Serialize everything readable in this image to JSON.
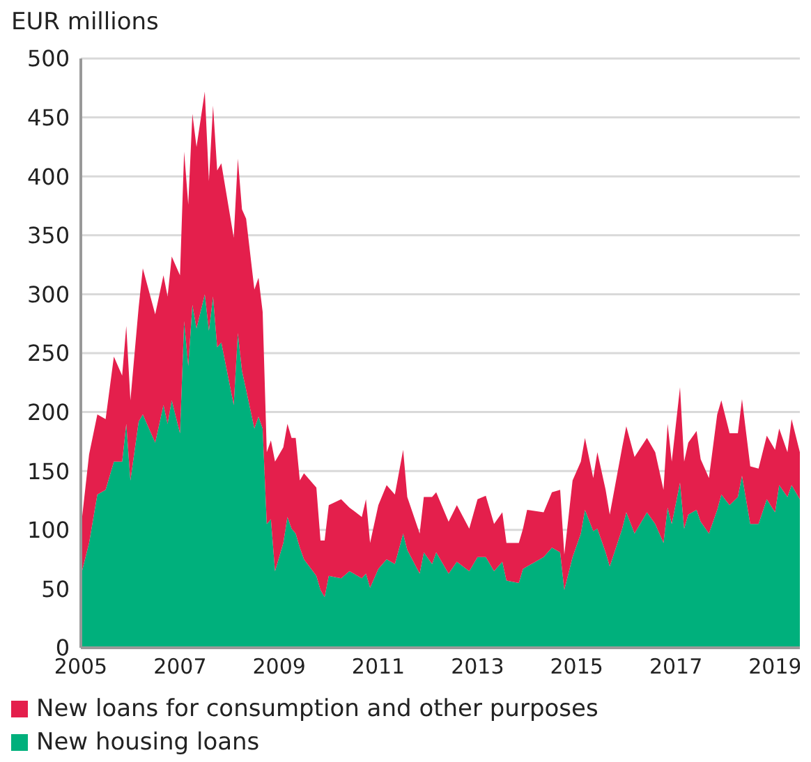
{
  "chart_data": {
    "type": "area",
    "ylabel": "EUR millions",
    "stacked": true,
    "grid": "y",
    "legend": "bottom",
    "x": [
      "2005-01",
      "2005-03",
      "2005-05",
      "2005-07",
      "2005-09",
      "2005-11",
      "2005-12",
      "2006-01",
      "2006-03",
      "2006-04",
      "2006-07",
      "2006-09",
      "2006-10",
      "2006-11",
      "2007-01",
      "2007-02",
      "2007-03",
      "2007-04",
      "2007-05",
      "2007-07",
      "2007-08",
      "2007-09",
      "2007-10",
      "2007-11",
      "2008-02",
      "2008-03",
      "2008-04",
      "2008-05",
      "2008-07",
      "2008-08",
      "2008-09",
      "2008-10",
      "2008-11",
      "2008-12",
      "2009-02",
      "2009-03",
      "2009-04",
      "2009-05",
      "2009-06",
      "2009-07",
      "2009-10",
      "2009-11",
      "2009-12",
      "2010-01",
      "2010-04",
      "2010-06",
      "2010-09",
      "2010-10",
      "2010-11",
      "2011-01",
      "2011-03",
      "2011-05",
      "2011-07",
      "2011-08",
      "2011-11",
      "2011-12",
      "2012-02",
      "2012-03",
      "2012-06",
      "2012-08",
      "2012-11",
      "2013-01",
      "2013-03",
      "2013-05",
      "2013-07",
      "2013-08",
      "2013-11",
      "2013-12",
      "2014-01",
      "2014-05",
      "2014-07",
      "2014-09",
      "2014-10",
      "2014-12",
      "2015-02",
      "2015-03",
      "2015-05",
      "2015-06",
      "2015-08",
      "2015-09",
      "2015-12",
      "2016-01",
      "2016-03",
      "2016-06",
      "2016-08",
      "2016-10",
      "2016-11",
      "2016-12",
      "2017-02",
      "2017-03",
      "2017-04",
      "2017-06",
      "2017-07",
      "2017-09",
      "2017-11",
      "2017-12",
      "2018-02",
      "2018-04",
      "2018-05",
      "2018-07",
      "2018-09",
      "2018-11",
      "2019-01",
      "2019-02",
      "2019-04",
      "2019-05",
      "2019-07"
    ],
    "series": [
      {
        "name": "New housing loans",
        "color": "#00b07c",
        "values": [
          61,
          89,
          130,
          134,
          158,
          158,
          190,
          142,
          192,
          198,
          174,
          206,
          190,
          210,
          182,
          277,
          239,
          291,
          271,
          300,
          269,
          298,
          255,
          259,
          206,
          267,
          235,
          219,
          186,
          196,
          186,
          105,
          109,
          65,
          89,
          111,
          101,
          97,
          85,
          75,
          61,
          49,
          43,
          61,
          59,
          65,
          59,
          63,
          51,
          67,
          75,
          71,
          97,
          83,
          63,
          81,
          71,
          81,
          63,
          73,
          65,
          77,
          77,
          65,
          73,
          57,
          55,
          67,
          69,
          77,
          85,
          81,
          49,
          77,
          97,
          117,
          99,
          101,
          81,
          69,
          101,
          115,
          97,
          115,
          105,
          89,
          119,
          105,
          140,
          101,
          113,
          117,
          107,
          97,
          117,
          130,
          121,
          128,
          146,
          105,
          105,
          126,
          115,
          138,
          128,
          138,
          126
        ]
      },
      {
        "name": "New loans for consumption and other purposes",
        "color": "#e41f4c",
        "values": [
          40,
          75,
          68,
          60,
          89,
          73,
          83,
          68,
          97,
          124,
          109,
          110,
          108,
          122,
          134,
          144,
          137,
          162,
          154,
          172,
          127,
          162,
          150,
          152,
          142,
          148,
          137,
          145,
          118,
          118,
          99,
          61,
          67,
          93,
          81,
          79,
          77,
          81,
          57,
          73,
          75,
          42,
          48,
          60,
          67,
          54,
          52,
          63,
          38,
          54,
          63,
          59,
          71,
          45,
          34,
          47,
          57,
          51,
          44,
          48,
          36,
          49,
          52,
          40,
          42,
          32,
          34,
          34,
          48,
          38,
          47,
          53,
          30,
          65,
          61,
          61,
          45,
          65,
          53,
          44,
          69,
          73,
          65,
          63,
          61,
          45,
          71,
          53,
          81,
          57,
          61,
          67,
          53,
          47,
          81,
          80,
          61,
          54,
          65,
          49,
          47,
          54,
          53,
          48,
          38,
          56,
          40
        ]
      }
    ],
    "xlim": [
      "2005-01",
      "2019-07"
    ],
    "xticks": [
      "2005",
      "2007",
      "2009",
      "2011",
      "2013",
      "2015",
      "2017",
      "2019"
    ],
    "ylim": [
      0,
      500
    ],
    "yticks": [
      0,
      50,
      100,
      150,
      200,
      250,
      300,
      350,
      400,
      450,
      500
    ]
  }
}
